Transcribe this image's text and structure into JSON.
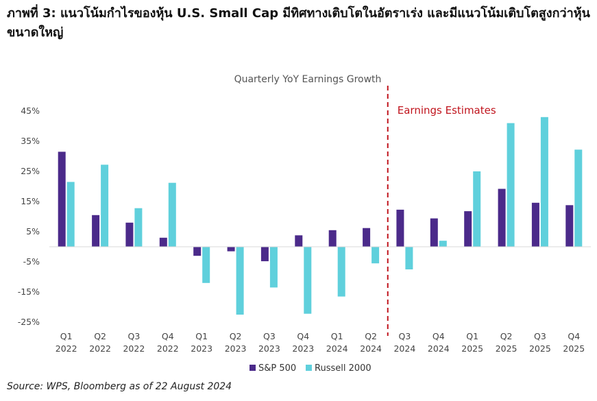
{
  "header": {
    "title": "ภาพที่ 3: แนวโน้มกำไรของหุ้น U.S. Small Cap มีทิศทางเติบโตในอัตราเร่ง และมีแนวโน้มเติบโตสูงกว่าหุ้นขนาดใหญ่"
  },
  "source": "Source: WPS, Bloomberg as of 22 August 2024",
  "chart_data": {
    "type": "bar",
    "title": "Quarterly YoY Earnings Growth",
    "annotation": "Earnings Estimates",
    "categories": [
      [
        "Q1",
        "2022"
      ],
      [
        "Q2",
        "2022"
      ],
      [
        "Q3",
        "2022"
      ],
      [
        "Q4",
        "2022"
      ],
      [
        "Q1",
        "2023"
      ],
      [
        "Q2",
        "2023"
      ],
      [
        "Q3",
        "2023"
      ],
      [
        "Q4",
        "2023"
      ],
      [
        "Q1",
        "2024"
      ],
      [
        "Q2",
        "2024"
      ],
      [
        "Q3",
        "2024"
      ],
      [
        "Q4",
        "2024"
      ],
      [
        "Q1",
        "2025"
      ],
      [
        "Q2",
        "2025"
      ],
      [
        "Q3",
        "2025"
      ],
      [
        "Q4",
        "2025"
      ]
    ],
    "estimate_start_index": 10,
    "yticks": [
      "45%",
      "35%",
      "25%",
      "15%",
      "5%",
      "-5%",
      "-15%",
      "-25%"
    ],
    "ytick_values": [
      45,
      35,
      25,
      15,
      5,
      -5,
      -15,
      -25
    ],
    "ylim": [
      -25,
      45
    ],
    "series": [
      {
        "name": "S&P 500",
        "color": "#4b2a8a",
        "values": [
          31.5,
          10.5,
          8,
          3,
          -3,
          -1.5,
          -4.8,
          3.8,
          5.5,
          6.2,
          12.3,
          9.4,
          11.8,
          19.2,
          14.6,
          13.8
        ]
      },
      {
        "name": "Russell 2000",
        "color": "#5fd0dc",
        "values": [
          21.5,
          27.2,
          12.8,
          21.2,
          -12,
          -22.5,
          -13.5,
          -22.2,
          -16.5,
          -5.5,
          -7.5,
          2,
          25,
          41,
          43,
          32.2
        ]
      }
    ],
    "legend_position": "bottom",
    "grid": false
  }
}
